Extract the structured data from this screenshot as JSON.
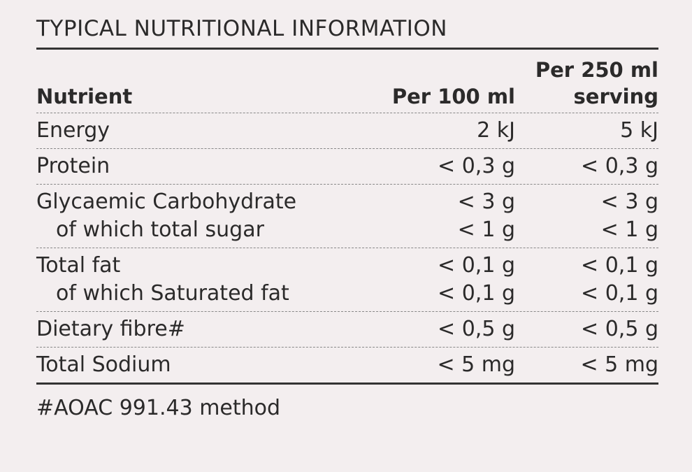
{
  "header": {
    "title": "TYPICAL NUTRITIONAL INFORMATION"
  },
  "table": {
    "columns": [
      [
        "Nutrient"
      ],
      [
        "Per 100 ml"
      ],
      [
        "Per 250 ml",
        "serving"
      ]
    ],
    "groups": [
      [
        [
          "Energy",
          "2 kJ",
          "5 kJ"
        ]
      ],
      [
        [
          "Protein",
          "< 0,3 g",
          "< 0,3 g"
        ]
      ],
      [
        [
          "Glycaemic Carbohydrate",
          "< 3 g",
          "< 3 g"
        ],
        [
          "of which total sugar",
          "< 1 g",
          "< 1 g"
        ]
      ],
      [
        [
          "Total fat",
          "< 0,1 g",
          "< 0,1 g"
        ],
        [
          "of which Saturated fat",
          "< 0,1 g",
          "< 0,1 g"
        ]
      ],
      [
        [
          "Dietary fibre#",
          "< 0,5 g",
          "< 0,5 g"
        ]
      ],
      [
        [
          "Total Sodium",
          "< 5 mg",
          "< 5 mg"
        ]
      ]
    ]
  },
  "footer": {
    "note": "#AOAC 991.43 method"
  }
}
